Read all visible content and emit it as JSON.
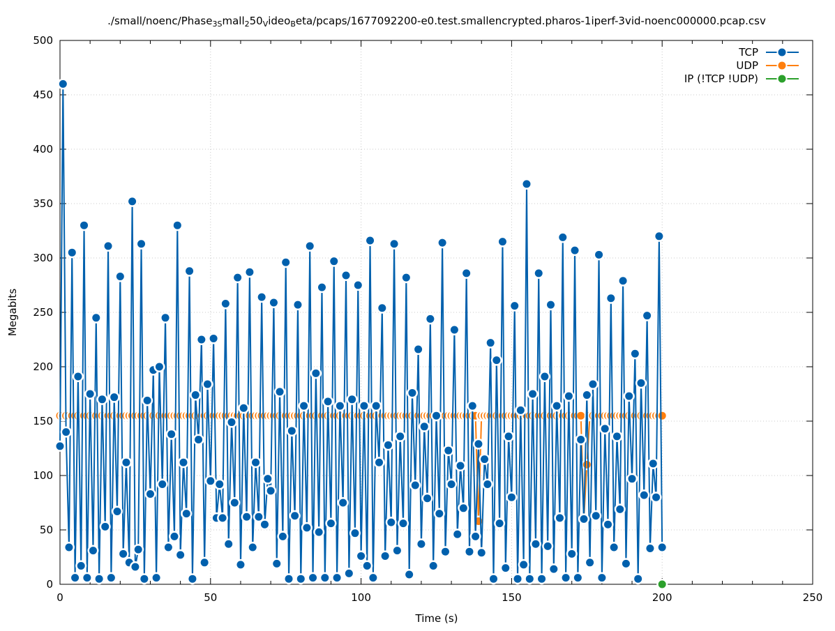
{
  "colors": {
    "tcp": "#0060ad",
    "udp": "#ff7f0e",
    "ip": "#2ca02c",
    "grid": "#c8c8c8",
    "axis": "#000000"
  },
  "chart_data": {
    "type": "line",
    "title_parts": [
      {
        "t": "./small/noenc/Phase",
        "s": "n"
      },
      {
        "t": "3",
        "s": "sub"
      },
      {
        "t": "S",
        "s": "sub"
      },
      {
        "t": "mall",
        "s": "n"
      },
      {
        "t": "2",
        "s": "sub"
      },
      {
        "t": "50",
        "s": "n"
      },
      {
        "t": "V",
        "s": "sub"
      },
      {
        "t": "ideo",
        "s": "n"
      },
      {
        "t": "B",
        "s": "sub"
      },
      {
        "t": "eta/pcaps/1677092200-e0.test.smallencrypted.pharos-1iperf-3vid-noenc000000.pcap.csv",
        "s": "n"
      }
    ],
    "xlabel": "Time (s)",
    "ylabel": "Megabits",
    "xlim": [
      0,
      250
    ],
    "ylim": [
      0,
      500
    ],
    "x_ticks": [
      0,
      50,
      100,
      150,
      200,
      250
    ],
    "y_ticks": [
      0,
      50,
      100,
      150,
      200,
      250,
      300,
      350,
      400,
      450,
      500
    ],
    "grid": true,
    "legend_position": "top-right",
    "series": [
      {
        "name": "TCP",
        "color": "#0060ad",
        "x": [
          0,
          1,
          2,
          3,
          4,
          5,
          6,
          7,
          8,
          9,
          10,
          11,
          12,
          13,
          14,
          15,
          16,
          17,
          18,
          19,
          20,
          21,
          22,
          23,
          24,
          25,
          26,
          27,
          28,
          29,
          30,
          31,
          32,
          33,
          34,
          35,
          36,
          37,
          38,
          39,
          40,
          41,
          42,
          43,
          44,
          45,
          46,
          47,
          48,
          49,
          50,
          51,
          52,
          53,
          54,
          55,
          56,
          57,
          58,
          59,
          60,
          61,
          62,
          63,
          64,
          65,
          66,
          67,
          68,
          69,
          70,
          71,
          72,
          73,
          74,
          75,
          76,
          77,
          78,
          79,
          80,
          81,
          82,
          83,
          84,
          85,
          86,
          87,
          88,
          89,
          90,
          91,
          92,
          93,
          94,
          95,
          96,
          97,
          98,
          99,
          100,
          101,
          102,
          103,
          104,
          105,
          106,
          107,
          108,
          109,
          110,
          111,
          112,
          113,
          114,
          115,
          116,
          117,
          118,
          119,
          120,
          121,
          122,
          123,
          124,
          125,
          126,
          127,
          128,
          129,
          130,
          131,
          132,
          133,
          134,
          135,
          136,
          137,
          138,
          139,
          140,
          141,
          142,
          143,
          144,
          145,
          146,
          147,
          148,
          149,
          150,
          151,
          152,
          153,
          154,
          155,
          156,
          157,
          158,
          159,
          160,
          161,
          162,
          163,
          164,
          165,
          166,
          167,
          168,
          169,
          170,
          171,
          172,
          173,
          174,
          175,
          176,
          177,
          178,
          179,
          180,
          181,
          182,
          183,
          184,
          185,
          186,
          187,
          188,
          189,
          190,
          191,
          192,
          193,
          194,
          195,
          196,
          197,
          198,
          199,
          200
        ],
        "values": [
          127,
          460,
          140,
          34,
          305,
          6,
          191,
          17,
          330,
          6,
          175,
          31,
          245,
          5,
          170,
          53,
          311,
          6,
          172,
          67,
          283,
          28,
          112,
          20,
          352,
          16,
          32,
          313,
          5,
          169,
          83,
          197,
          6,
          200,
          92,
          245,
          34,
          138,
          44,
          330,
          27,
          112,
          65,
          288,
          5,
          174,
          133,
          225,
          20,
          184,
          95,
          226,
          61,
          92,
          61,
          258,
          37,
          149,
          75,
          282,
          18,
          162,
          62,
          287,
          34,
          112,
          62,
          264,
          55,
          97,
          86,
          259,
          19,
          177,
          44,
          296,
          5,
          141,
          63,
          257,
          5,
          164,
          52,
          311,
          6,
          194,
          48,
          273,
          6,
          168,
          56,
          297,
          6,
          164,
          75,
          284,
          10,
          170,
          47,
          275,
          26,
          164,
          17,
          316,
          6,
          164,
          112,
          254,
          26,
          128,
          57,
          313,
          31,
          136,
          56,
          282,
          9,
          176,
          91,
          216,
          37,
          145,
          79,
          244,
          17,
          155,
          65,
          314,
          30,
          123,
          92,
          234,
          46,
          109,
          70,
          286,
          30,
          164,
          44,
          129,
          29,
          115,
          92,
          222,
          5,
          206,
          56,
          315,
          15,
          136,
          80,
          256,
          5,
          160,
          18,
          368,
          5,
          175,
          37,
          286,
          5,
          191,
          35,
          257,
          14,
          164,
          61,
          319,
          6,
          173,
          28,
          307,
          6,
          133,
          60,
          174,
          20,
          184,
          63,
          303,
          6,
          143,
          55,
          263,
          34,
          136,
          69,
          279,
          19,
          173,
          97,
          212,
          5,
          185,
          82,
          247,
          33,
          111,
          80,
          320,
          34
        ]
      },
      {
        "name": "UDP",
        "color": "#ff7f0e",
        "x": [
          0,
          1,
          2,
          3,
          4,
          5,
          6,
          7,
          8,
          9,
          10,
          11,
          12,
          13,
          14,
          15,
          16,
          17,
          18,
          19,
          20,
          21,
          22,
          23,
          24,
          25,
          26,
          27,
          28,
          29,
          30,
          31,
          32,
          33,
          34,
          35,
          36,
          37,
          38,
          39,
          40,
          41,
          42,
          43,
          44,
          45,
          46,
          47,
          48,
          49,
          50,
          51,
          52,
          53,
          54,
          55,
          56,
          57,
          58,
          59,
          60,
          61,
          62,
          63,
          64,
          65,
          66,
          67,
          68,
          69,
          70,
          71,
          72,
          73,
          74,
          75,
          76,
          77,
          78,
          79,
          80,
          81,
          82,
          83,
          84,
          85,
          86,
          87,
          88,
          89,
          90,
          91,
          92,
          93,
          94,
          95,
          96,
          97,
          98,
          99,
          100,
          101,
          102,
          103,
          104,
          105,
          106,
          107,
          108,
          109,
          110,
          111,
          112,
          113,
          114,
          115,
          116,
          117,
          118,
          119,
          120,
          121,
          122,
          123,
          124,
          125,
          126,
          127,
          128,
          129,
          130,
          131,
          132,
          133,
          134,
          135,
          136,
          137,
          138,
          139,
          140,
          141,
          142,
          143,
          144,
          145,
          146,
          147,
          148,
          149,
          150,
          151,
          152,
          153,
          154,
          155,
          156,
          157,
          158,
          159,
          160,
          161,
          162,
          163,
          164,
          165,
          166,
          167,
          168,
          169,
          170,
          171,
          172,
          173,
          174,
          175,
          176,
          177,
          178,
          179,
          180,
          181,
          182,
          183,
          184,
          185,
          186,
          187,
          188,
          189,
          190,
          191,
          192,
          193,
          194,
          195,
          196,
          197,
          198,
          199,
          200
        ],
        "values": [
          155,
          155,
          155,
          155,
          155,
          155,
          155,
          155,
          155,
          155,
          155,
          155,
          155,
          155,
          155,
          155,
          155,
          155,
          155,
          155,
          155,
          155,
          155,
          155,
          155,
          155,
          155,
          155,
          155,
          155,
          155,
          155,
          155,
          155,
          155,
          155,
          155,
          155,
          155,
          155,
          155,
          155,
          155,
          155,
          155,
          155,
          155,
          155,
          155,
          155,
          155,
          155,
          155,
          155,
          155,
          155,
          155,
          155,
          155,
          155,
          155,
          155,
          155,
          155,
          155,
          155,
          155,
          155,
          155,
          155,
          155,
          155,
          155,
          155,
          155,
          155,
          155,
          155,
          155,
          155,
          155,
          155,
          155,
          155,
          155,
          155,
          155,
          155,
          155,
          155,
          155,
          155,
          155,
          155,
          155,
          155,
          155,
          155,
          155,
          155,
          155,
          155,
          155,
          155,
          155,
          155,
          155,
          155,
          155,
          155,
          155,
          155,
          155,
          155,
          155,
          155,
          155,
          155,
          155,
          155,
          155,
          155,
          155,
          155,
          155,
          155,
          155,
          155,
          155,
          155,
          155,
          155,
          155,
          155,
          155,
          155,
          155,
          155,
          155,
          58,
          155,
          155,
          155,
          155,
          155,
          155,
          155,
          155,
          155,
          155,
          155,
          155,
          155,
          155,
          155,
          155,
          155,
          155,
          155,
          155,
          155,
          155,
          155,
          155,
          155,
          155,
          155,
          155,
          155,
          155,
          155,
          155,
          155,
          155,
          60,
          110,
          155,
          155,
          155,
          155,
          155,
          155,
          155,
          155,
          155,
          155,
          155,
          155,
          155,
          155,
          155,
          155,
          155,
          155,
          155,
          155,
          155,
          155,
          155,
          155,
          155
        ]
      },
      {
        "name": "IP (!TCP  !UDP)",
        "color": "#2ca02c",
        "x": [
          200
        ],
        "values": [
          0
        ]
      }
    ]
  }
}
